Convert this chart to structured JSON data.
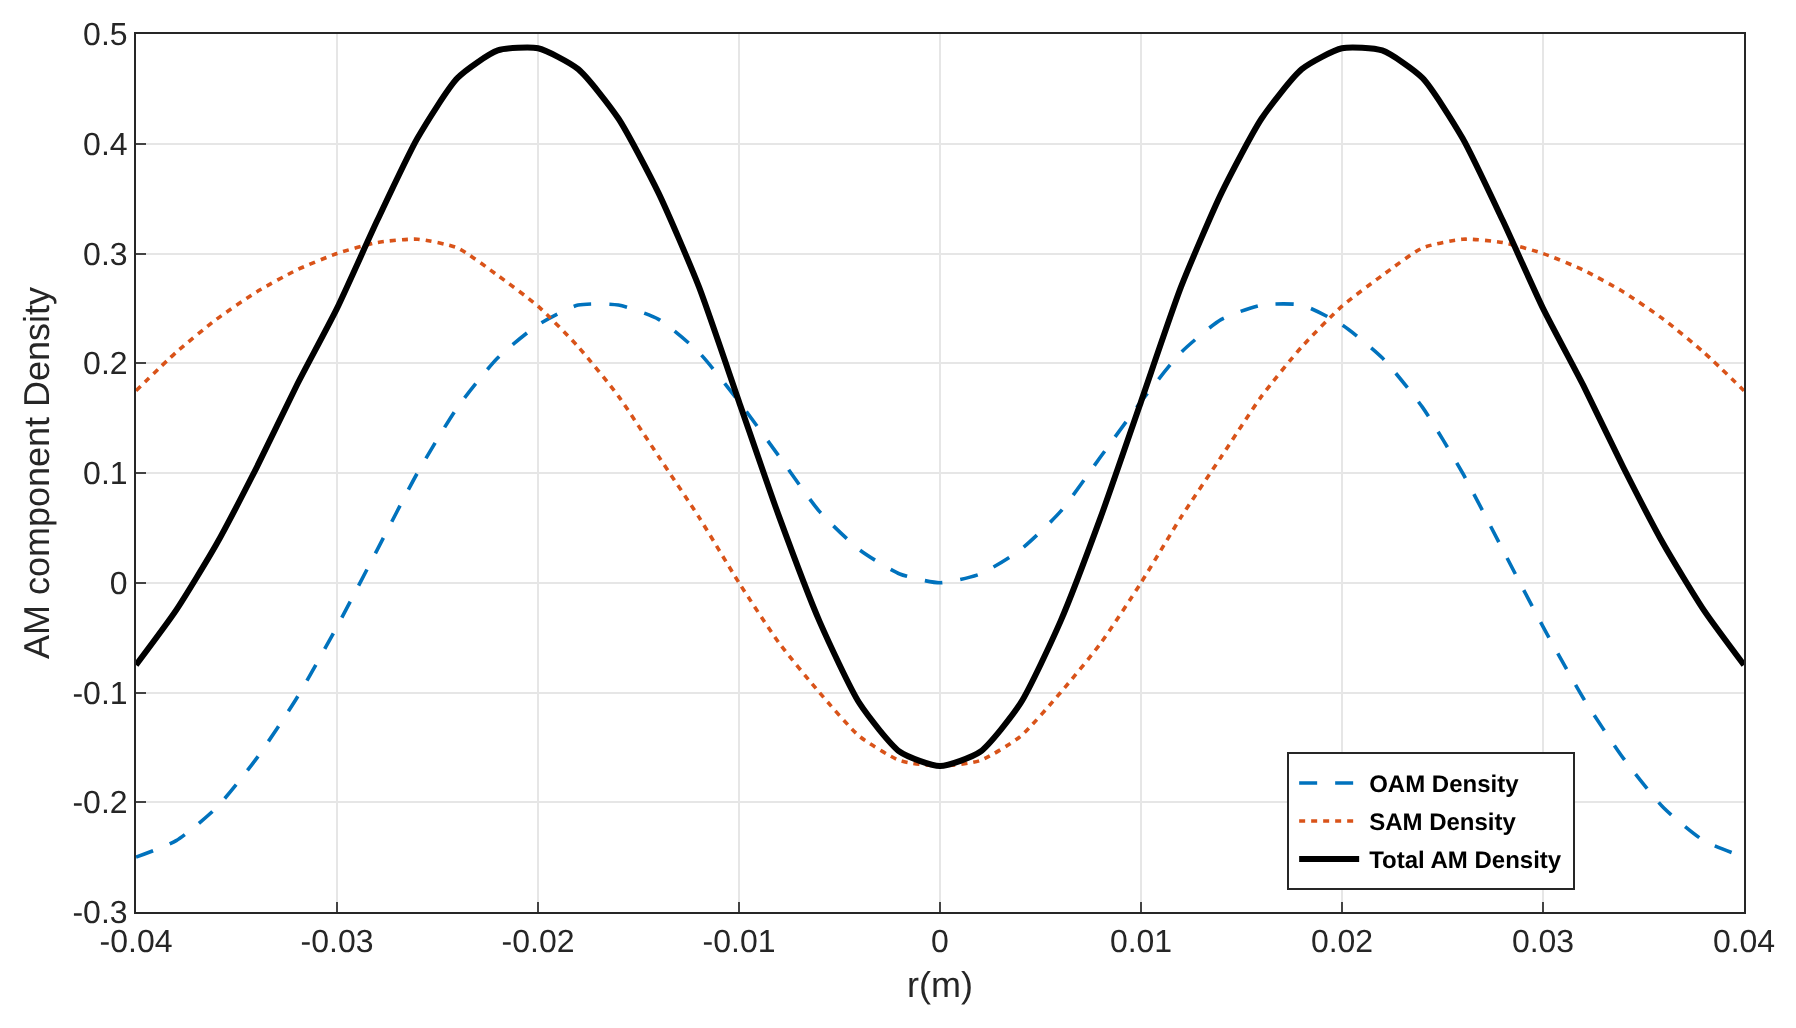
{
  "chart_data": {
    "type": "line",
    "xlabel": "r(m)",
    "ylabel": "AM component Density",
    "x": [
      -0.04,
      -0.038,
      -0.036,
      -0.034,
      -0.032,
      -0.03,
      -0.028,
      -0.026,
      -0.024,
      -0.022,
      -0.02,
      -0.018,
      -0.016,
      -0.014,
      -0.012,
      -0.01,
      -0.008,
      -0.006,
      -0.004,
      -0.002,
      0,
      0.002,
      0.004,
      0.006,
      0.008,
      0.01,
      0.012,
      0.014,
      0.016,
      0.018,
      0.02,
      0.022,
      0.024,
      0.026,
      0.028,
      0.03,
      0.032,
      0.034,
      0.036,
      0.038,
      0.04
    ],
    "series": [
      {
        "name": "OAM Density",
        "color": "#0072bd",
        "line_style": "dashed",
        "values": [
          -0.25,
          -0.235,
          -0.205,
          -0.16,
          -0.105,
          -0.04,
          0.03,
          0.1,
          0.16,
          0.205,
          0.235,
          0.253,
          0.253,
          0.24,
          0.21,
          0.165,
          0.115,
          0.065,
          0.03,
          0.008,
          0,
          0.008,
          0.03,
          0.065,
          0.115,
          0.165,
          0.21,
          0.24,
          0.253,
          0.253,
          0.235,
          0.205,
          0.16,
          0.1,
          0.03,
          -0.04,
          -0.105,
          -0.16,
          -0.205,
          -0.235,
          -0.25
        ]
      },
      {
        "name": "SAM Density",
        "color": "#d95319",
        "line_style": "dotted",
        "values": [
          0.175,
          0.21,
          0.24,
          0.265,
          0.285,
          0.3,
          0.31,
          0.313,
          0.305,
          0.28,
          0.252,
          0.215,
          0.17,
          0.115,
          0.06,
          0.0,
          -0.055,
          -0.1,
          -0.14,
          -0.162,
          -0.167,
          -0.162,
          -0.14,
          -0.1,
          -0.055,
          0.0,
          0.06,
          0.115,
          0.17,
          0.215,
          0.252,
          0.28,
          0.305,
          0.313,
          0.31,
          0.3,
          0.285,
          0.265,
          0.24,
          0.21,
          0.175
        ]
      },
      {
        "name": "Total AM Density",
        "color": "#000000",
        "line_style": "solid",
        "values": [
          -0.075,
          -0.025,
          0.035,
          0.105,
          0.18,
          0.25,
          0.33,
          0.405,
          0.46,
          0.485,
          0.487,
          0.468,
          0.423,
          0.355,
          0.27,
          0.165,
          0.06,
          -0.035,
          -0.11,
          -0.154,
          -0.167,
          -0.154,
          -0.11,
          -0.035,
          0.06,
          0.165,
          0.27,
          0.355,
          0.423,
          0.468,
          0.487,
          0.485,
          0.46,
          0.405,
          0.33,
          0.25,
          0.18,
          0.105,
          0.035,
          -0.025,
          -0.075
        ]
      }
    ],
    "xlim": [
      -0.04,
      0.04
    ],
    "xticks": [
      -0.04,
      -0.03,
      -0.02,
      -0.01,
      0,
      0.01,
      0.02,
      0.03,
      0.04
    ],
    "ylim": [
      -0.3,
      0.5
    ],
    "yticks": [
      -0.3,
      -0.2,
      -0.1,
      0,
      0.1,
      0.2,
      0.3,
      0.4,
      0.5
    ],
    "grid": true,
    "legend": "bottom right",
    "marker": "none"
  }
}
